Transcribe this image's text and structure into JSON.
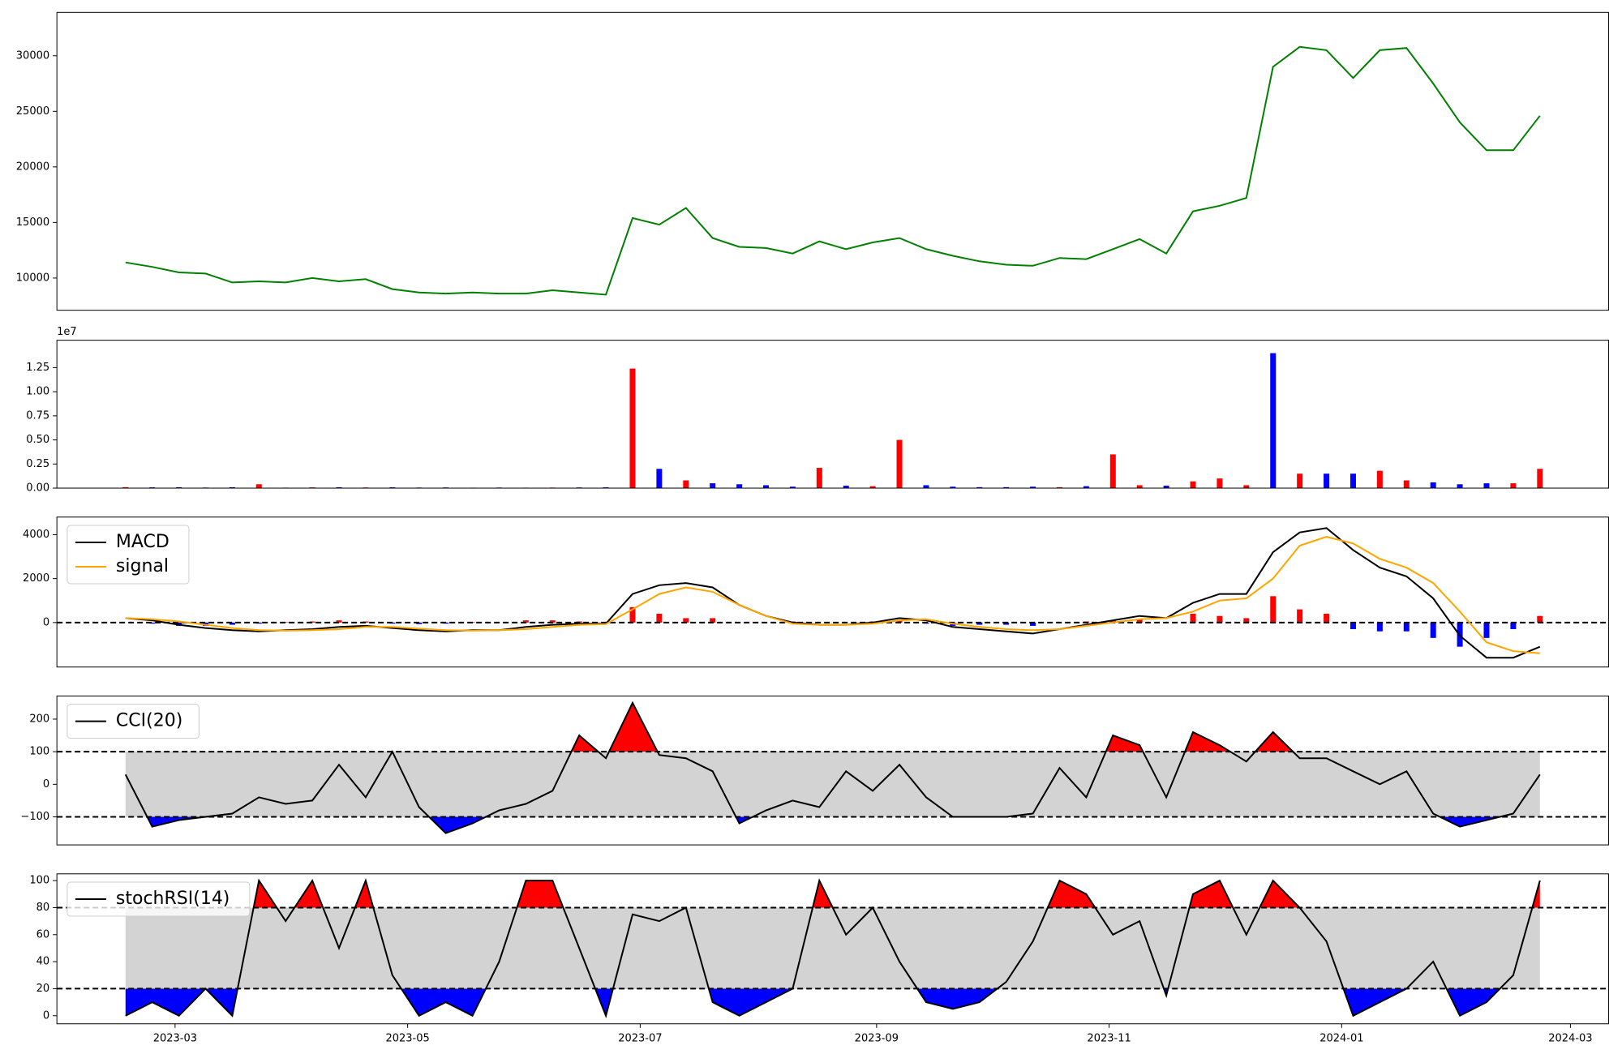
{
  "chart_data": [
    {
      "type": "line",
      "color": "green",
      "x": [
        -13,
        -6,
        1,
        8,
        15,
        22,
        29,
        36,
        43,
        50,
        57,
        64,
        71,
        78,
        85,
        92,
        99,
        106,
        113,
        120,
        127,
        134,
        141,
        148,
        155,
        162,
        169,
        176,
        183,
        190,
        197,
        204,
        211,
        218,
        225,
        232,
        239,
        246,
        253,
        260,
        267,
        274,
        281,
        288,
        295,
        302,
        309,
        316,
        323,
        330,
        337,
        344,
        351,
        358
      ],
      "xlim": [
        -31,
        376
      ],
      "values": [
        11400,
        11000,
        10500,
        10400,
        9600,
        9700,
        9600,
        10000,
        9700,
        9900,
        9000,
        8700,
        8600,
        8700,
        8600,
        8600,
        8900,
        8700,
        8500,
        15400,
        14800,
        16300,
        13600,
        12800,
        12700,
        12200,
        13300,
        12600,
        13200,
        13600,
        12600,
        12000,
        11500,
        11200,
        11100,
        11800,
        11700,
        12600,
        13500,
        12200,
        16000,
        16500,
        17200,
        29000,
        30800,
        30500,
        28000,
        30500,
        30700,
        27500,
        24000,
        21500,
        21500,
        24600
      ],
      "ylim": [
        7100,
        33900
      ],
      "yticks": [
        10000,
        15000,
        20000,
        25000,
        30000
      ]
    },
    {
      "type": "bar",
      "offset_label": "1e7",
      "values": [
        100000,
        80000,
        90000,
        60000,
        90000,
        400000,
        50000,
        80000,
        90000,
        70000,
        80000,
        60000,
        70000,
        50000,
        60000,
        50000,
        60000,
        70000,
        80000,
        12400000,
        2000000,
        800000,
        500000,
        400000,
        300000,
        150000,
        2100000,
        250000,
        200000,
        5000000,
        300000,
        150000,
        100000,
        100000,
        150000,
        100000,
        200000,
        3500000,
        300000,
        250000,
        700000,
        1000000,
        300000,
        14000000,
        1500000,
        1500000,
        1500000,
        1800000,
        800000,
        600000,
        400000,
        500000,
        500000,
        2000000
      ],
      "colors": [
        "red",
        "blue",
        "blue",
        "blue",
        "blue",
        "red",
        "blue",
        "red",
        "blue",
        "red",
        "blue",
        "blue",
        "blue",
        "red",
        "blue",
        "red",
        "red",
        "blue",
        "blue",
        "red",
        "blue",
        "red",
        "blue",
        "blue",
        "blue",
        "blue",
        "red",
        "blue",
        "red",
        "red",
        "blue",
        "blue",
        "blue",
        "blue",
        "blue",
        "red",
        "blue",
        "red",
        "red",
        "blue",
        "red",
        "red",
        "red",
        "blue",
        "red",
        "blue",
        "blue",
        "red",
        "red",
        "blue",
        "blue",
        "blue",
        "red",
        "red"
      ],
      "ylim": [
        0,
        15340000
      ],
      "yticks": [
        {
          "value": 0,
          "label": "0.00"
        },
        {
          "value": 2500000,
          "label": "0.25"
        },
        {
          "value": 5000000,
          "label": "0.50"
        },
        {
          "value": 7500000,
          "label": "0.75"
        },
        {
          "value": 10000000,
          "label": "1.00"
        },
        {
          "value": 12500000,
          "label": "1.25"
        }
      ]
    },
    {
      "type": "macd",
      "levels": [
        0
      ],
      "legend": "upper left",
      "series": [
        {
          "name": "MACD",
          "color": "black",
          "values": [
            200,
            100,
            -100,
            -250,
            -350,
            -400,
            -350,
            -300,
            -200,
            -150,
            -250,
            -350,
            -400,
            -350,
            -350,
            -200,
            -100,
            -50,
            -50,
            1300,
            1700,
            1800,
            1600,
            800,
            300,
            0,
            -100,
            -100,
            0,
            200,
            100,
            -200,
            -300,
            -400,
            -500,
            -300,
            -100,
            100,
            300,
            200,
            900,
            1300,
            1300,
            3200,
            4100,
            4300,
            3300,
            2500,
            2100,
            1100,
            -600,
            -1600,
            -1600,
            -1100
          ]
        },
        {
          "name": "signal",
          "color": "orange",
          "values": [
            200,
            150,
            50,
            -100,
            -250,
            -350,
            -370,
            -350,
            -300,
            -200,
            -200,
            -280,
            -350,
            -370,
            -350,
            -300,
            -200,
            -100,
            -70,
            600,
            1300,
            1600,
            1400,
            800,
            300,
            -50,
            -100,
            -100,
            -50,
            100,
            150,
            -50,
            -200,
            -300,
            -350,
            -300,
            -150,
            0,
            150,
            200,
            500,
            1000,
            1100,
            2000,
            3500,
            3900,
            3600,
            2900,
            2500,
            1800,
            500,
            -900,
            -1300,
            -1400
          ]
        }
      ],
      "histogram": {
        "pos_color": "red",
        "neg_color": "blue",
        "values": [
          0,
          -50,
          -150,
          -150,
          -100,
          -50,
          20,
          50,
          100,
          50,
          -50,
          -70,
          -50,
          20,
          0,
          100,
          100,
          50,
          20,
          700,
          400,
          200,
          200,
          0,
          0,
          50,
          0,
          0,
          50,
          100,
          -50,
          -150,
          -100,
          -100,
          -150,
          0,
          50,
          100,
          150,
          0,
          400,
          300,
          200,
          1200,
          600,
          400,
          -300,
          -400,
          -400,
          -700,
          -1100,
          -700,
          -300,
          300
        ]
      },
      "ylim": [
        -2024,
        4800
      ],
      "yticks": [
        0,
        2000,
        4000
      ]
    },
    {
      "type": "oscillator",
      "levels": [
        100,
        -100
      ],
      "above_color": "red",
      "below_color": "blue",
      "band_color": "lightgray",
      "legend": "upper left",
      "series": [
        {
          "name": "CCI(20)",
          "color": "black",
          "values": [
            30,
            -130,
            -110,
            -100,
            -90,
            -40,
            -60,
            -50,
            60,
            -40,
            100,
            -70,
            -150,
            -120,
            -80,
            -60,
            -20,
            150,
            80,
            250,
            90,
            80,
            40,
            -120,
            -80,
            -50,
            -70,
            40,
            -20,
            60,
            -40,
            -100,
            -100,
            -100,
            -90,
            50,
            -40,
            150,
            120,
            -40,
            160,
            120,
            70,
            160,
            80,
            80,
            40,
            0,
            40,
            -90,
            -130,
            -110,
            -90,
            30
          ]
        }
      ],
      "ylim": [
        -186,
        271
      ],
      "yticks": [
        {
          "value": -100,
          "label": "−100"
        },
        0,
        100,
        200
      ]
    },
    {
      "type": "oscillator",
      "levels": [
        80,
        20
      ],
      "above_color": "red",
      "below_color": "blue",
      "band_color": "lightgray",
      "legend": "upper left",
      "series": [
        {
          "name": "stochRSI(14)",
          "color": "black",
          "values": [
            0,
            10,
            0,
            20,
            0,
            100,
            70,
            100,
            50,
            100,
            30,
            0,
            10,
            0,
            40,
            100,
            100,
            50,
            0,
            75,
            70,
            80,
            10,
            0,
            10,
            20,
            100,
            60,
            80,
            40,
            10,
            5,
            10,
            25,
            55,
            100,
            90,
            60,
            70,
            15,
            90,
            100,
            60,
            100,
            80,
            55,
            0,
            10,
            20,
            40,
            0,
            10,
            30,
            100
          ]
        }
      ],
      "ylim": [
        -6,
        105
      ],
      "yticks": [
        0,
        20,
        40,
        60,
        80,
        100
      ],
      "xticks": [
        {
          "value": 0,
          "label": "2023-03"
        },
        {
          "value": 61,
          "label": "2023-05"
        },
        {
          "value": 122,
          "label": "2023-07"
        },
        {
          "value": 184,
          "label": "2023-09"
        },
        {
          "value": 245,
          "label": "2023-11"
        },
        {
          "value": 306,
          "label": "2024-01"
        },
        {
          "value": 366,
          "label": "2024-03"
        }
      ]
    }
  ]
}
